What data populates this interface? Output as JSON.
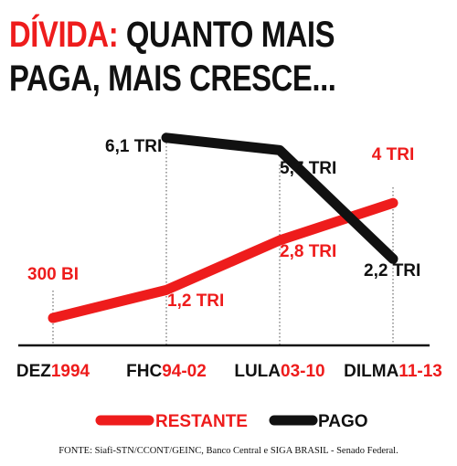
{
  "header": {
    "title_highlight": "DÍVIDA:",
    "title_line1_rest": "QUANTO MAIS",
    "title_line2": "PAGA, MAIS CRESCE..."
  },
  "colors": {
    "restante": "#ee1c1c",
    "pago": "#111111",
    "axis": "#111111",
    "gridline": "#888888"
  },
  "chart_data": {
    "type": "line",
    "unit_note": "values in R$ trillions (TRI); 300 BI = 0.3",
    "categories": [
      {
        "prefix": "DEZ",
        "suffix": "1994"
      },
      {
        "prefix": "FHC",
        "suffix": "94-02"
      },
      {
        "prefix": "LULA",
        "suffix": "03-10"
      },
      {
        "prefix": "DILMA",
        "suffix": "11-13"
      }
    ],
    "series": [
      {
        "name": "RESTANTE",
        "color": "#ee1c1c",
        "values": [
          0.3,
          1.2,
          2.8,
          4.0
        ],
        "labels": [
          "300 BI",
          "1,2 TRI",
          "2,8 TRI",
          "4 TRI"
        ],
        "label_positions": [
          "above",
          "below",
          "below",
          "above"
        ]
      },
      {
        "name": "PAGO",
        "color": "#111111",
        "values": [
          null,
          6.1,
          5.7,
          2.2
        ],
        "labels": [
          "",
          "6,1 TRI",
          "5,7 TRI",
          "2,2 TRI"
        ],
        "label_positions": [
          "",
          "left",
          "above",
          "below"
        ]
      }
    ],
    "legend": {
      "placement": "bottom",
      "items": [
        "RESTANTE",
        "PAGO"
      ]
    },
    "grid": "dotted vertical guide lines at each category"
  },
  "footer": {
    "source": "FONTE: Siafi-STN/CCONT/GEINC, Banco Central e SIGA BRASIL - Senado Federal."
  }
}
